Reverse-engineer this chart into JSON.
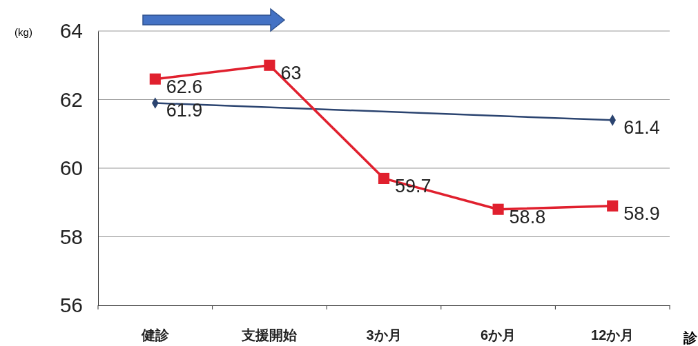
{
  "chart_data": {
    "type": "line",
    "ylabel": "(kg)",
    "categories": [
      "健診",
      "支援開始",
      "3か月",
      "6か月",
      "12か月"
    ],
    "series": [
      {
        "color": "#2b4470",
        "marker": "diamond",
        "x": [
          "健診",
          "12か月"
        ],
        "values": [
          61.9,
          61.4
        ]
      },
      {
        "color": "#e0202e",
        "marker": "square",
        "values": [
          62.6,
          63,
          59.7,
          58.8,
          58.9
        ]
      }
    ],
    "ylim": [
      56,
      64
    ],
    "yticks": [
      56,
      58,
      60,
      62,
      64
    ],
    "grid": "y",
    "data_labels": true,
    "line_style": "solid",
    "annotations": [
      "診"
    ]
  }
}
